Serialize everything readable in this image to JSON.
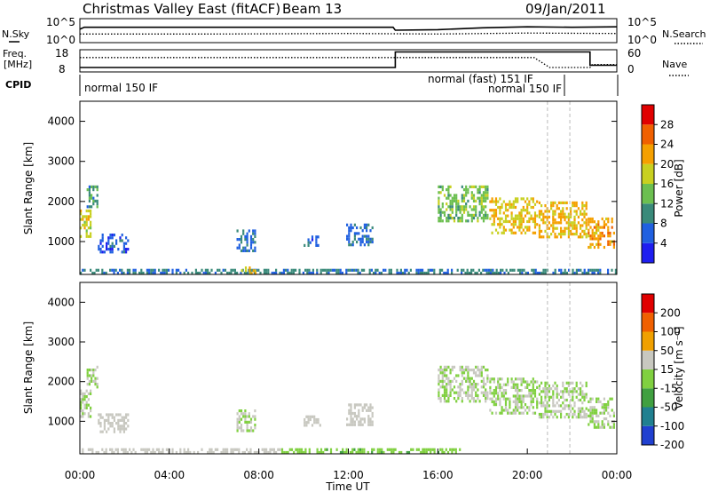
{
  "header": {
    "title": "Christmas Valley East (fitACF)",
    "beam": "Beam 13",
    "date": "09/Jan/2011"
  },
  "labels": {
    "nsky": "N.Sky",
    "nsearch": "N.Search",
    "freq_line1": "Freq.",
    "freq_line2": "[MHz]",
    "nave": "Nave",
    "cpid": "CPID",
    "range_label": "Slant Range [km]",
    "time_label": "Time UT",
    "power_label": "Power [dB]",
    "velocity_label": "Velocity [m s⁻¹]"
  },
  "cpid_modes": [
    {
      "label": "normal 150 IF",
      "start_h": 0.0
    },
    {
      "label": "normal (fast) 151 IF",
      "start_h": 17.9
    },
    {
      "label": "normal 150 IF",
      "start_h": 22.0
    }
  ],
  "scales": {
    "noise_left": [
      "10^5",
      "10^0"
    ],
    "noise_right": [
      "10^5",
      "10^0"
    ],
    "freq_ticks": [
      "18",
      "8"
    ],
    "nave_ticks": [
      "60",
      "0"
    ]
  },
  "chart_data": [
    {
      "type": "line",
      "name": "noise",
      "x_range": [
        0,
        24
      ],
      "series": [
        {
          "name": "N.Sky",
          "points": [
            [
              0,
              2.8
            ],
            [
              0.2,
              3.2
            ],
            [
              14,
              3.2
            ],
            [
              14.1,
              2.6
            ],
            [
              16,
              2.7
            ],
            [
              18,
              3.1
            ],
            [
              20,
              3.3
            ],
            [
              22,
              3.2
            ],
            [
              24,
              3.3
            ]
          ]
        },
        {
          "name": "N.Search",
          "points": [
            [
              0,
              1.8
            ],
            [
              6,
              1.8
            ],
            [
              12,
              1.9
            ],
            [
              16,
              1.8
            ],
            [
              20,
              2.0
            ],
            [
              24,
              1.9
            ]
          ]
        }
      ]
    },
    {
      "type": "line",
      "name": "frequency / nave",
      "x_range": [
        0,
        24
      ],
      "series": [
        {
          "name": "Freq",
          "points": [
            [
              0,
              10
            ],
            [
              14.1,
              10
            ],
            [
              14.1,
              17
            ],
            [
              22.8,
              17
            ],
            [
              22.8,
              11
            ],
            [
              24,
              11
            ]
          ]
        },
        {
          "name": "Nave",
          "points": [
            [
              0,
              39
            ],
            [
              20.3,
              39
            ],
            [
              21.0,
              12
            ],
            [
              22.8,
              12
            ],
            [
              22.9,
              20
            ],
            [
              24,
              20
            ]
          ]
        }
      ]
    },
    {
      "type": "heatmap",
      "title": "Power",
      "xlabel": "Time UT",
      "ylabel": "Slant Range [km]",
      "x_ticks": [
        "00:00",
        "04:00",
        "08:00",
        "12:00",
        "16:00",
        "20:00",
        "00:00"
      ],
      "y_ticks": [
        "1000",
        "2000",
        "3000",
        "4000"
      ],
      "ylim": [
        180,
        4500
      ],
      "colorbar": {
        "label": "Power [dB]",
        "ticks": [
          "4",
          "8",
          "12",
          "16",
          "20",
          "24",
          "28"
        ],
        "range": [
          0,
          32
        ],
        "colors": [
          "#1e1ef0",
          "#2060e0",
          "#3a8a7a",
          "#6cbf50",
          "#c8d020",
          "#f5a000",
          "#f06000",
          "#e00000"
        ]
      },
      "regions": [
        {
          "t": [
            0.0,
            0.5
          ],
          "r": [
            1100,
            1800
          ],
          "level": 18
        },
        {
          "t": [
            0.3,
            0.8
          ],
          "r": [
            1800,
            2400
          ],
          "level": 10
        },
        {
          "t": [
            0.8,
            2.2
          ],
          "r": [
            700,
            1200
          ],
          "level": 6
        },
        {
          "t": [
            7.0,
            7.9
          ],
          "r": [
            750,
            1300
          ],
          "level": 7
        },
        {
          "t": [
            10.0,
            10.8
          ],
          "r": [
            850,
            1150
          ],
          "level": 6
        },
        {
          "t": [
            11.9,
            13.1
          ],
          "r": [
            850,
            1450
          ],
          "level": 7
        },
        {
          "t": [
            16.0,
            18.3
          ],
          "r": [
            1500,
            2400
          ],
          "level": 14
        },
        {
          "t": [
            18.3,
            20.5
          ],
          "r": [
            1200,
            2100
          ],
          "level": 20
        },
        {
          "t": [
            20.5,
            22.7
          ],
          "r": [
            1100,
            2000
          ],
          "level": 21
        },
        {
          "t": [
            22.7,
            23.9
          ],
          "r": [
            800,
            1600
          ],
          "level": 22
        },
        {
          "t": [
            0.0,
            24.0
          ],
          "r": [
            180,
            320
          ],
          "level": 9
        },
        {
          "t": [
            7.2,
            7.9
          ],
          "r": [
            200,
            380
          ],
          "level": 20
        }
      ]
    },
    {
      "type": "heatmap",
      "title": "Velocity",
      "xlabel": "Time UT",
      "ylabel": "Slant Range [km]",
      "x_ticks": [
        "00:00",
        "04:00",
        "08:00",
        "12:00",
        "16:00",
        "20:00",
        "00:00"
      ],
      "y_ticks": [
        "1000",
        "2000",
        "3000",
        "4000"
      ],
      "ylim": [
        180,
        4500
      ],
      "colorbar": {
        "label": "Velocity [m s⁻¹]",
        "ticks": [
          "200",
          "100",
          "50",
          "15",
          "-15",
          "-50",
          "-100",
          "-200"
        ],
        "range": [
          -250,
          250
        ],
        "colors": [
          "#2040d0",
          "#208090",
          "#40a040",
          "#80d040",
          "#c8c8c0",
          "#f0a000",
          "#f06000",
          "#e00000"
        ]
      },
      "regions": [
        {
          "t": [
            0.0,
            0.5
          ],
          "r": [
            1100,
            1800
          ],
          "level": 0
        },
        {
          "t": [
            0.3,
            0.8
          ],
          "r": [
            1800,
            2400
          ],
          "level": 0
        },
        {
          "t": [
            0.8,
            2.2
          ],
          "r": [
            700,
            1200
          ],
          "level": 40
        },
        {
          "t": [
            7.0,
            7.9
          ],
          "r": [
            750,
            1300
          ],
          "level": 0
        },
        {
          "t": [
            10.0,
            10.8
          ],
          "r": [
            850,
            1150
          ],
          "level": 40
        },
        {
          "t": [
            11.9,
            13.1
          ],
          "r": [
            850,
            1450
          ],
          "level": 40
        },
        {
          "t": [
            16.0,
            18.3
          ],
          "r": [
            1500,
            2400
          ],
          "level": 0
        },
        {
          "t": [
            18.3,
            20.5
          ],
          "r": [
            1200,
            2100
          ],
          "level": 0
        },
        {
          "t": [
            20.5,
            22.7
          ],
          "r": [
            1100,
            2000
          ],
          "level": 0
        },
        {
          "t": [
            22.7,
            23.9
          ],
          "r": [
            800,
            1600
          ],
          "level": 0
        },
        {
          "t": [
            0.0,
            9.0
          ],
          "r": [
            180,
            320
          ],
          "level": 40
        },
        {
          "t": [
            9.0,
            17.0
          ],
          "r": [
            180,
            320
          ],
          "level": -60
        }
      ]
    }
  ]
}
